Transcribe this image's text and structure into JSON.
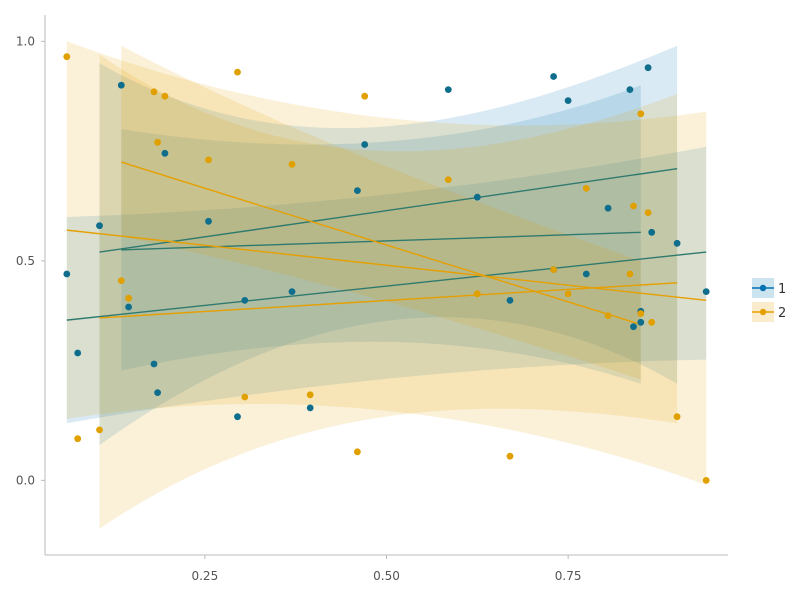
{
  "chart_data": {
    "type": "scatter",
    "title": "",
    "xlabel": "",
    "ylabel": "",
    "xlim": [
      0.03,
      0.97
    ],
    "ylim": [
      -0.17,
      1.06
    ],
    "xticks": [
      0.25,
      0.5,
      0.75
    ],
    "xtick_labels": [
      "0.25",
      "0.50",
      "0.75"
    ],
    "yticks": [
      0.0,
      0.5,
      1.0
    ],
    "ytick_labels": [
      "0.0",
      "0.5",
      "1.0"
    ],
    "grid": false,
    "legend_position": "right",
    "series": [
      {
        "name": "1",
        "color": "#0072B2",
        "points": [
          [
            0.06,
            0.47
          ],
          [
            0.075,
            0.29
          ],
          [
            0.105,
            0.58
          ],
          [
            0.135,
            0.9
          ],
          [
            0.145,
            0.395
          ],
          [
            0.18,
            0.265
          ],
          [
            0.185,
            0.2
          ],
          [
            0.195,
            0.745
          ],
          [
            0.255,
            0.59
          ],
          [
            0.295,
            0.145
          ],
          [
            0.305,
            0.41
          ],
          [
            0.37,
            0.43
          ],
          [
            0.395,
            0.165
          ],
          [
            0.46,
            0.66
          ],
          [
            0.47,
            0.765
          ],
          [
            0.585,
            0.89
          ],
          [
            0.625,
            0.645
          ],
          [
            0.67,
            0.41
          ],
          [
            0.73,
            0.92
          ],
          [
            0.73,
            0.48
          ],
          [
            0.75,
            0.865
          ],
          [
            0.775,
            0.47
          ],
          [
            0.805,
            0.62
          ],
          [
            0.835,
            0.89
          ],
          [
            0.84,
            0.35
          ],
          [
            0.85,
            0.385
          ],
          [
            0.85,
            0.36
          ],
          [
            0.86,
            0.94
          ],
          [
            0.865,
            0.565
          ],
          [
            0.9,
            0.54
          ],
          [
            0.94,
            0.43
          ]
        ],
        "fits": [
          {
            "x": [
              0.06,
              0.94
            ],
            "y": [
              0.365,
              0.52
            ],
            "band_x": [
              0.06,
              0.94
            ],
            "band_lo": [
              0.13,
              0.275
            ],
            "band_mid": [
              0.365,
              0.52
            ],
            "band_hi": [
              0.6,
              0.76
            ],
            "band_curv": 0.06
          },
          {
            "x": [
              0.105,
              0.9
            ],
            "y": [
              0.52,
              0.71
            ],
            "band_x": [
              0.105,
              0.9
            ],
            "band_lo": [
              0.08,
              0.22
            ],
            "band_mid": [
              0.52,
              0.71
            ],
            "band_hi": [
              0.95,
              0.99
            ],
            "band_curv": 0.23
          },
          {
            "x": [
              0.135,
              0.85
            ],
            "y": [
              0.525,
              0.565
            ],
            "band_x": [
              0.135,
              0.85
            ],
            "band_lo": [
              0.25,
              0.22
            ],
            "band_mid": [
              0.525,
              0.565
            ],
            "band_hi": [
              0.8,
              0.9
            ],
            "band_curv": 0.13
          }
        ]
      },
      {
        "name": "2",
        "color": "#E69F00",
        "points": [
          [
            0.06,
            0.965
          ],
          [
            0.075,
            0.095
          ],
          [
            0.105,
            0.115
          ],
          [
            0.135,
            0.455
          ],
          [
            0.145,
            0.415
          ],
          [
            0.18,
            0.885
          ],
          [
            0.185,
            0.77
          ],
          [
            0.195,
            0.875
          ],
          [
            0.255,
            0.73
          ],
          [
            0.295,
            0.93
          ],
          [
            0.305,
            0.19
          ],
          [
            0.37,
            0.72
          ],
          [
            0.395,
            0.195
          ],
          [
            0.46,
            0.065
          ],
          [
            0.47,
            0.875
          ],
          [
            0.585,
            0.685
          ],
          [
            0.625,
            0.425
          ],
          [
            0.67,
            0.055
          ],
          [
            0.73,
            0.48
          ],
          [
            0.75,
            0.425
          ],
          [
            0.775,
            0.665
          ],
          [
            0.805,
            0.375
          ],
          [
            0.835,
            0.47
          ],
          [
            0.84,
            0.625
          ],
          [
            0.85,
            0.38
          ],
          [
            0.85,
            0.835
          ],
          [
            0.86,
            0.61
          ],
          [
            0.865,
            0.36
          ],
          [
            0.9,
            0.145
          ],
          [
            0.94,
            0.0
          ]
        ],
        "fits": [
          {
            "x": [
              0.06,
              0.94
            ],
            "y": [
              0.57,
              0.41
            ],
            "band_x": [
              0.06,
              0.94
            ],
            "band_lo": [
              0.14,
              -0.01
            ],
            "band_mid": [
              0.57,
              0.41
            ],
            "band_hi": [
              1.0,
              0.84
            ],
            "band_curv": 0.11
          },
          {
            "x": [
              0.105,
              0.9
            ],
            "y": [
              0.37,
              0.45
            ],
            "band_x": [
              0.105,
              0.9
            ],
            "band_lo": [
              -0.11,
              0.13
            ],
            "band_mid": [
              0.37,
              0.45
            ],
            "band_hi": [
              0.97,
              0.88
            ],
            "band_curv": 0.17
          },
          {
            "x": [
              0.135,
              0.85
            ],
            "y": [
              0.725,
              0.355
            ],
            "band_x": [
              0.135,
              0.85
            ],
            "band_lo": [
              0.555,
              0.23
            ],
            "band_mid": [
              0.725,
              0.355
            ],
            "band_hi": [
              0.99,
              0.5
            ],
            "band_curv": 0.06
          }
        ]
      }
    ]
  },
  "legend": {
    "items": [
      "1",
      "2"
    ]
  }
}
